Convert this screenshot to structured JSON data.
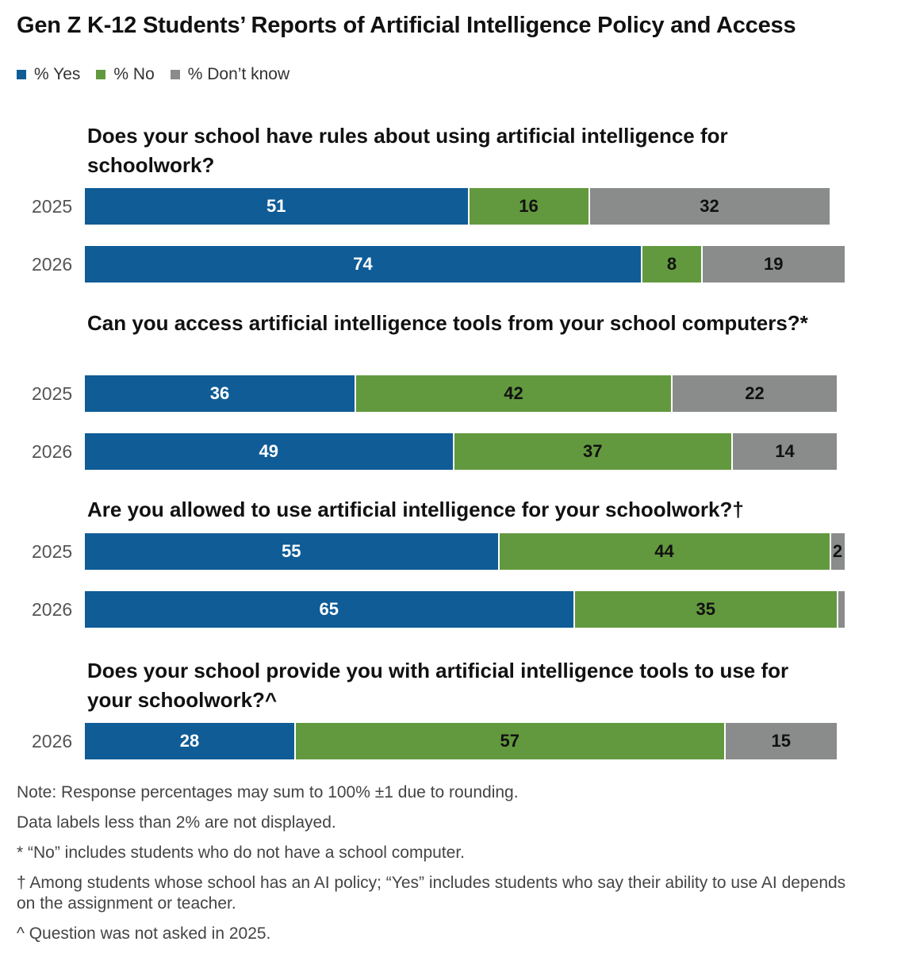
{
  "chart_data": {
    "type": "bar",
    "orientation": "horizontal-stacked",
    "title": "Gen Z K-12 Students’ Reports of Artificial Intelligence Policy and Access",
    "legend": [
      {
        "name": "% Yes",
        "color": "#0f5c96"
      },
      {
        "name": "% No",
        "color": "#62993e"
      },
      {
        "name": "% Don’t know",
        "color": "#8a8c8c"
      }
    ],
    "legend_position": "top-left",
    "xlim": [
      0,
      100
    ],
    "questions": [
      {
        "title": "Does your school have rules about using artificial intelligence for schoolwork?",
        "rows": [
          {
            "year": "2025",
            "values": [
              51,
              16,
              32
            ]
          },
          {
            "year": "2026",
            "values": [
              74,
              8,
              19
            ]
          }
        ]
      },
      {
        "title": "Can you access artificial intelligence tools from your school computers?*",
        "rows": [
          {
            "year": "2025",
            "values": [
              36,
              42,
              22
            ]
          },
          {
            "year": "2026",
            "values": [
              49,
              37,
              14
            ]
          }
        ]
      },
      {
        "title": "Are you allowed to use artificial intelligence for your schoolwork?†",
        "rows": [
          {
            "year": "2025",
            "values": [
              55,
              44,
              2
            ]
          },
          {
            "year": "2026",
            "values": [
              65,
              35,
              1
            ]
          }
        ]
      },
      {
        "title": "Does your school provide you with artificial intelligence tools to use for your schoolwork?^",
        "rows": [
          {
            "year": "2026",
            "values": [
              28,
              57,
              15
            ]
          }
        ]
      }
    ]
  },
  "notes": [
    "Note: Response percentages may sum to 100% ±1 due to rounding.",
    "Data labels less than 2% are not displayed.",
    "* “No” includes students who do not have a school computer.",
    "† Among students whose school has an AI policy; “Yes” includes students who say their ability to use AI depends on the assignment or teacher.",
    "^ Question was not asked in 2025."
  ]
}
